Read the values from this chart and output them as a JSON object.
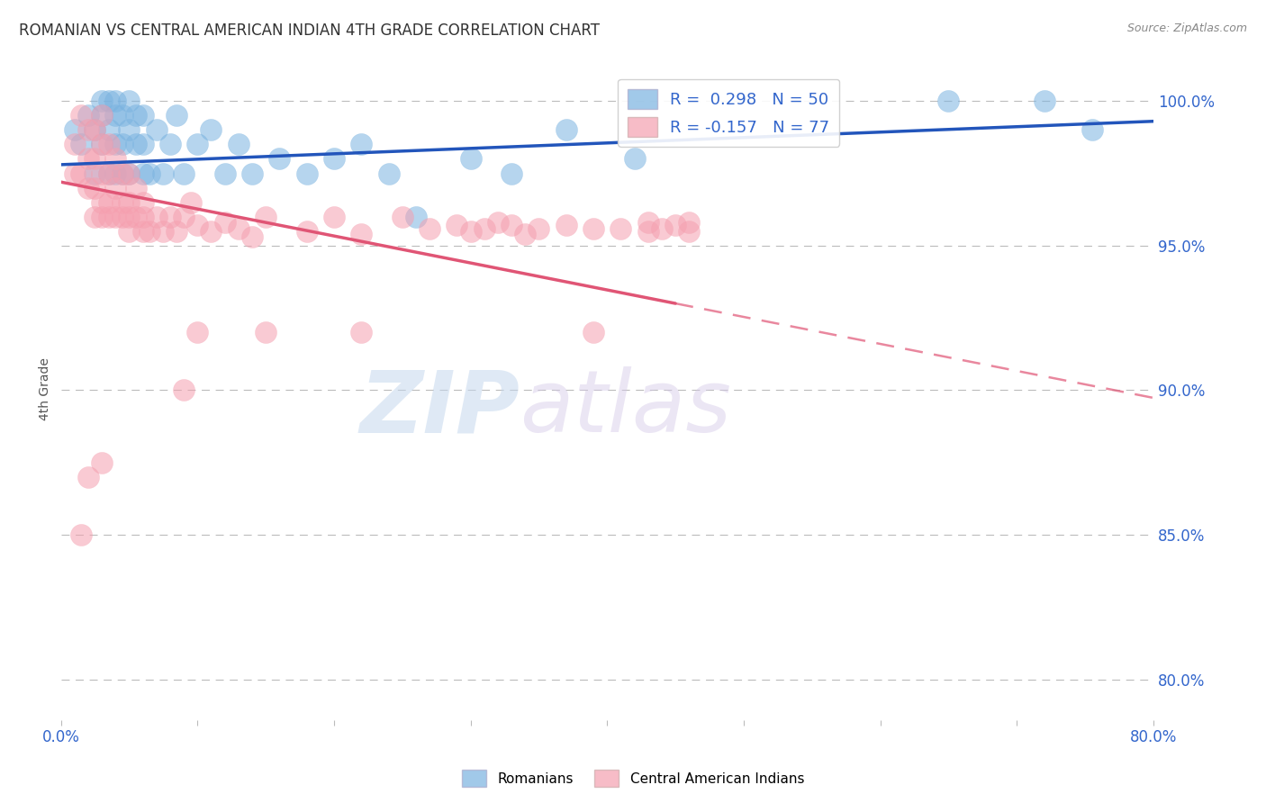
{
  "title": "ROMANIAN VS CENTRAL AMERICAN INDIAN 4TH GRADE CORRELATION CHART",
  "source": "Source: ZipAtlas.com",
  "ylabel": "4th Grade",
  "ytick_labels": [
    "100.0%",
    "95.0%",
    "90.0%",
    "85.0%",
    "80.0%"
  ],
  "ytick_values": [
    1.0,
    0.95,
    0.9,
    0.85,
    0.8
  ],
  "xlim": [
    0.0,
    0.8
  ],
  "ylim": [
    0.786,
    1.015
  ],
  "legend_blue_label": "R =  0.298   N = 50",
  "legend_pink_label": "R = -0.157   N = 77",
  "blue_color": "#7ab3e0",
  "pink_color": "#f5a0b0",
  "blue_line_color": "#2255bb",
  "pink_line_color": "#e05575",
  "watermark_zip": "ZIP",
  "watermark_atlas": "atlas",
  "blue_points_x": [
    0.01,
    0.015,
    0.02,
    0.025,
    0.025,
    0.03,
    0.03,
    0.03,
    0.035,
    0.035,
    0.035,
    0.04,
    0.04,
    0.04,
    0.04,
    0.045,
    0.045,
    0.045,
    0.05,
    0.05,
    0.05,
    0.055,
    0.055,
    0.06,
    0.06,
    0.06,
    0.065,
    0.07,
    0.075,
    0.08,
    0.085,
    0.09,
    0.1,
    0.11,
    0.12,
    0.13,
    0.14,
    0.16,
    0.18,
    0.2,
    0.22,
    0.24,
    0.26,
    0.3,
    0.33,
    0.37,
    0.42,
    0.65,
    0.72,
    0.755
  ],
  "blue_points_y": [
    0.99,
    0.985,
    0.995,
    0.975,
    0.99,
    0.985,
    0.995,
    1.0,
    0.975,
    0.99,
    1.0,
    0.975,
    0.985,
    0.995,
    1.0,
    0.975,
    0.985,
    0.995,
    0.975,
    0.99,
    1.0,
    0.985,
    0.995,
    0.975,
    0.985,
    0.995,
    0.975,
    0.99,
    0.975,
    0.985,
    0.995,
    0.975,
    0.985,
    0.99,
    0.975,
    0.985,
    0.975,
    0.98,
    0.975,
    0.98,
    0.985,
    0.975,
    0.96,
    0.98,
    0.975,
    0.99,
    0.98,
    1.0,
    1.0,
    0.99
  ],
  "pink_points_x": [
    0.01,
    0.01,
    0.015,
    0.015,
    0.02,
    0.02,
    0.02,
    0.025,
    0.025,
    0.025,
    0.025,
    0.03,
    0.03,
    0.03,
    0.03,
    0.03,
    0.035,
    0.035,
    0.035,
    0.035,
    0.04,
    0.04,
    0.04,
    0.045,
    0.045,
    0.045,
    0.05,
    0.05,
    0.05,
    0.05,
    0.055,
    0.055,
    0.06,
    0.06,
    0.06,
    0.065,
    0.07,
    0.075,
    0.08,
    0.085,
    0.09,
    0.095,
    0.1,
    0.11,
    0.12,
    0.13,
    0.14,
    0.15,
    0.18,
    0.2,
    0.22,
    0.25,
    0.27,
    0.29,
    0.3,
    0.31,
    0.32,
    0.33,
    0.34,
    0.35,
    0.37,
    0.39,
    0.41,
    0.43,
    0.43,
    0.44,
    0.45,
    0.46,
    0.46,
    0.1,
    0.15,
    0.22,
    0.39,
    0.09,
    0.03,
    0.02,
    0.015
  ],
  "pink_points_y": [
    0.985,
    0.975,
    0.995,
    0.975,
    0.97,
    0.98,
    0.99,
    0.96,
    0.97,
    0.98,
    0.99,
    0.96,
    0.965,
    0.975,
    0.985,
    0.995,
    0.96,
    0.965,
    0.975,
    0.985,
    0.96,
    0.97,
    0.98,
    0.96,
    0.965,
    0.975,
    0.955,
    0.96,
    0.965,
    0.975,
    0.96,
    0.97,
    0.955,
    0.96,
    0.965,
    0.955,
    0.96,
    0.955,
    0.96,
    0.955,
    0.96,
    0.965,
    0.957,
    0.955,
    0.958,
    0.956,
    0.953,
    0.96,
    0.955,
    0.96,
    0.954,
    0.96,
    0.956,
    0.957,
    0.955,
    0.956,
    0.958,
    0.957,
    0.954,
    0.956,
    0.957,
    0.956,
    0.956,
    0.955,
    0.958,
    0.956,
    0.957,
    0.955,
    0.958,
    0.92,
    0.92,
    0.92,
    0.92,
    0.9,
    0.875,
    0.87,
    0.85
  ]
}
